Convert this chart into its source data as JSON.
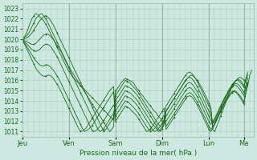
{
  "xlabel": "Pression niveau de la mer( hPa )",
  "bg_color": "#cce8e0",
  "grid_color": "#aaccbb",
  "line_color": "#1a6b1a",
  "ylim_min": 1010.5,
  "ylim_max": 1023.5,
  "yticks": [
    1011,
    1012,
    1013,
    1014,
    1015,
    1016,
    1017,
    1018,
    1019,
    1020,
    1021,
    1022,
    1023
  ],
  "day_labels": [
    "Jeu",
    "Ven",
    "Sam",
    "Dim",
    "Lun",
    "Ma"
  ],
  "day_positions": [
    0,
    24,
    48,
    72,
    96,
    114
  ],
  "xlim_max": 119,
  "series": [
    [
      1020.0,
      1020.2,
      1020.5,
      1021.0,
      1021.5,
      1022.0,
      1022.3,
      1022.5,
      1022.4,
      1022.2,
      1022.0,
      1021.8,
      1021.5,
      1021.2,
      1020.8,
      1020.4,
      1020.0,
      1019.6,
      1019.2,
      1018.8,
      1018.4,
      1018.0,
      1017.6,
      1017.2,
      1016.9,
      1016.6,
      1016.3,
      1016.1,
      1015.9,
      1015.7,
      1015.5,
      1015.3,
      1015.1,
      1014.9,
      1014.7,
      1014.5,
      1014.3,
      1014.1,
      1013.9,
      1013.7,
      1013.5,
      1013.3,
      1013.1,
      1012.9,
      1012.7,
      1012.5,
      1012.3,
      1012.1,
      1015.0,
      1015.2,
      1015.5,
      1015.8,
      1016.0,
      1016.2,
      1016.1,
      1016.0,
      1015.9,
      1015.8,
      1015.5,
      1015.2,
      1015.0,
      1014.7,
      1014.5,
      1014.2,
      1014.0,
      1013.7,
      1013.5,
      1013.2,
      1013.0,
      1012.8,
      1012.5,
      1012.3,
      1012.0,
      1011.8,
      1013.0,
      1013.3,
      1013.6,
      1013.9,
      1014.2,
      1014.5,
      1014.8,
      1015.1,
      1015.4,
      1015.7,
      1016.0,
      1016.2,
      1016.4,
      1016.5,
      1016.4,
      1016.2,
      1016.0,
      1015.7,
      1015.4,
      1015.0,
      1014.6,
      1014.2,
      1013.8,
      1013.4,
      1011.2,
      1011.0,
      1011.5,
      1012.0,
      1012.5,
      1013.0,
      1013.5,
      1014.0,
      1014.5,
      1015.0,
      1015.5,
      1015.8,
      1016.0,
      1016.2,
      1016.3,
      1016.2,
      1016.0,
      1015.8,
      1015.5,
      1016.5,
      1017.0
    ],
    [
      1020.0,
      1020.1,
      1020.3,
      1020.5,
      1020.8,
      1021.2,
      1021.6,
      1022.0,
      1022.2,
      1022.4,
      1022.5,
      1022.3,
      1022.0,
      1021.7,
      1021.3,
      1020.9,
      1020.5,
      1020.1,
      1019.7,
      1019.3,
      1018.9,
      1018.5,
      1018.1,
      1017.7,
      1017.3,
      1017.0,
      1016.7,
      1016.4,
      1016.1,
      1015.8,
      1015.5,
      1015.2,
      1014.9,
      1014.6,
      1014.3,
      1014.0,
      1013.7,
      1013.4,
      1013.1,
      1012.8,
      1012.5,
      1012.2,
      1011.9,
      1011.6,
      1011.3,
      1011.0,
      1011.2,
      1011.5,
      1014.5,
      1014.8,
      1015.1,
      1015.4,
      1015.7,
      1016.0,
      1015.9,
      1015.8,
      1015.6,
      1015.4,
      1015.2,
      1015.0,
      1014.7,
      1014.4,
      1014.1,
      1013.8,
      1013.5,
      1013.2,
      1012.9,
      1012.6,
      1012.3,
      1012.0,
      1011.7,
      1011.5,
      1011.8,
      1012.2,
      1013.5,
      1013.8,
      1014.1,
      1014.4,
      1014.7,
      1015.0,
      1015.3,
      1015.6,
      1015.9,
      1016.2,
      1016.5,
      1016.7,
      1016.8,
      1016.7,
      1016.5,
      1016.2,
      1015.9,
      1015.5,
      1015.1,
      1014.7,
      1014.3,
      1013.9,
      1013.5,
      1013.1,
      1011.5,
      1011.8,
      1012.2,
      1012.6,
      1013.0,
      1013.4,
      1013.8,
      1014.2,
      1014.6,
      1015.0,
      1015.4,
      1015.7,
      1016.0,
      1016.1,
      1016.0,
      1015.8,
      1015.5,
      1016.0,
      1016.5
    ],
    [
      1020.0,
      1020.0,
      1020.1,
      1020.2,
      1020.4,
      1020.6,
      1020.9,
      1021.2,
      1021.5,
      1021.8,
      1022.0,
      1022.2,
      1022.3,
      1022.2,
      1022.0,
      1021.7,
      1021.4,
      1021.0,
      1020.6,
      1020.2,
      1019.8,
      1019.4,
      1019.0,
      1018.6,
      1018.2,
      1017.8,
      1017.4,
      1017.0,
      1016.6,
      1016.2,
      1015.8,
      1015.4,
      1015.0,
      1014.6,
      1014.2,
      1013.8,
      1013.4,
      1013.0,
      1012.6,
      1012.2,
      1011.8,
      1011.4,
      1011.0,
      1011.2,
      1011.5,
      1011.8,
      1012.1,
      1012.4,
      1014.0,
      1014.3,
      1014.6,
      1014.9,
      1015.2,
      1015.5,
      1015.4,
      1015.3,
      1015.2,
      1015.0,
      1014.8,
      1014.6,
      1014.3,
      1014.0,
      1013.7,
      1013.4,
      1013.1,
      1012.8,
      1012.5,
      1012.2,
      1011.9,
      1011.6,
      1011.3,
      1011.0,
      1011.3,
      1011.7,
      1013.0,
      1013.3,
      1013.6,
      1013.9,
      1014.2,
      1014.5,
      1014.8,
      1015.1,
      1015.4,
      1015.7,
      1016.0,
      1016.2,
      1016.3,
      1016.2,
      1016.0,
      1015.7,
      1015.4,
      1015.0,
      1014.6,
      1014.2,
      1013.8,
      1013.4,
      1013.0,
      1012.6,
      1011.8,
      1012.2,
      1012.6,
      1013.0,
      1013.4,
      1013.8,
      1014.2,
      1014.6,
      1015.0,
      1015.3,
      1015.6,
      1015.8,
      1016.0,
      1016.0,
      1015.8,
      1015.6,
      1015.3,
      1016.2,
      1016.8
    ],
    [
      1020.0,
      1019.9,
      1019.8,
      1019.7,
      1019.6,
      1019.5,
      1019.5,
      1019.6,
      1019.8,
      1020.0,
      1020.2,
      1020.4,
      1020.5,
      1020.5,
      1020.4,
      1020.2,
      1020.0,
      1019.7,
      1019.4,
      1019.1,
      1018.8,
      1018.4,
      1018.0,
      1017.6,
      1017.2,
      1016.8,
      1016.4,
      1016.0,
      1015.6,
      1015.2,
      1014.8,
      1014.4,
      1014.0,
      1013.6,
      1013.2,
      1012.8,
      1012.4,
      1012.0,
      1011.6,
      1011.2,
      1011.0,
      1011.1,
      1011.3,
      1011.6,
      1011.9,
      1012.2,
      1012.5,
      1012.8,
      1013.5,
      1013.8,
      1014.1,
      1014.4,
      1014.7,
      1015.0,
      1014.9,
      1014.8,
      1014.7,
      1014.5,
      1014.3,
      1014.1,
      1013.8,
      1013.5,
      1013.2,
      1012.9,
      1012.6,
      1012.3,
      1012.0,
      1011.7,
      1011.5,
      1011.3,
      1011.0,
      1011.2,
      1011.5,
      1011.8,
      1012.5,
      1012.8,
      1013.1,
      1013.4,
      1013.7,
      1014.0,
      1014.3,
      1014.6,
      1014.9,
      1015.2,
      1015.5,
      1015.7,
      1015.8,
      1015.7,
      1015.5,
      1015.2,
      1014.9,
      1014.5,
      1014.1,
      1013.7,
      1013.3,
      1012.9,
      1012.5,
      1012.1,
      1011.8,
      1012.0,
      1012.4,
      1012.8,
      1013.2,
      1013.6,
      1014.0,
      1014.4,
      1014.8,
      1015.1,
      1015.4,
      1015.6,
      1015.7,
      1015.6,
      1015.4,
      1015.1,
      1014.8,
      1015.5,
      1016.2
    ],
    [
      1020.0,
      1019.8,
      1019.6,
      1019.4,
      1019.2,
      1019.0,
      1018.9,
      1018.8,
      1018.9,
      1019.0,
      1019.2,
      1019.4,
      1019.5,
      1019.5,
      1019.4,
      1019.2,
      1018.9,
      1018.6,
      1018.3,
      1017.9,
      1017.5,
      1017.1,
      1016.7,
      1016.3,
      1015.9,
      1015.5,
      1015.1,
      1014.7,
      1014.3,
      1013.9,
      1013.5,
      1013.1,
      1012.7,
      1012.3,
      1011.9,
      1011.5,
      1011.1,
      1011.0,
      1011.1,
      1011.3,
      1011.5,
      1011.8,
      1012.1,
      1012.4,
      1012.7,
      1013.0,
      1013.3,
      1013.6,
      1013.0,
      1013.3,
      1013.6,
      1013.9,
      1014.2,
      1014.5,
      1014.4,
      1014.3,
      1014.2,
      1014.0,
      1013.8,
      1013.6,
      1013.3,
      1013.0,
      1012.7,
      1012.4,
      1012.1,
      1011.8,
      1011.5,
      1011.2,
      1011.0,
      1011.1,
      1011.3,
      1011.5,
      1011.8,
      1012.1,
      1012.0,
      1012.3,
      1012.6,
      1012.9,
      1013.2,
      1013.5,
      1013.8,
      1014.1,
      1014.4,
      1014.7,
      1015.0,
      1015.2,
      1015.3,
      1015.2,
      1015.0,
      1014.7,
      1014.4,
      1014.0,
      1013.6,
      1013.2,
      1012.8,
      1012.4,
      1012.0,
      1011.7,
      1012.0,
      1012.3,
      1012.7,
      1013.1,
      1013.5,
      1013.9,
      1014.3,
      1014.6,
      1014.9,
      1015.2,
      1015.4,
      1015.5,
      1015.5,
      1015.3,
      1015.1,
      1014.8,
      1014.5,
      1015.2,
      1015.8
    ],
    [
      1020.0,
      1019.7,
      1019.4,
      1019.1,
      1018.8,
      1018.5,
      1018.2,
      1017.9,
      1017.7,
      1017.5,
      1017.4,
      1017.4,
      1017.5,
      1017.5,
      1017.4,
      1017.2,
      1017.0,
      1016.7,
      1016.4,
      1016.1,
      1015.7,
      1015.3,
      1014.9,
      1014.5,
      1014.1,
      1013.7,
      1013.3,
      1012.9,
      1012.5,
      1012.1,
      1011.7,
      1011.3,
      1011.0,
      1011.1,
      1011.2,
      1011.4,
      1011.6,
      1011.9,
      1012.2,
      1012.5,
      1012.8,
      1013.1,
      1013.4,
      1013.7,
      1014.0,
      1014.3,
      1014.6,
      1014.9,
      1012.5,
      1012.8,
      1013.1,
      1013.4,
      1013.7,
      1014.0,
      1013.9,
      1013.8,
      1013.6,
      1013.4,
      1013.2,
      1013.0,
      1012.7,
      1012.4,
      1012.1,
      1011.8,
      1011.5,
      1011.2,
      1011.0,
      1011.1,
      1011.3,
      1011.5,
      1011.8,
      1012.0,
      1012.3,
      1012.6,
      1011.5,
      1011.8,
      1012.1,
      1012.4,
      1012.7,
      1013.0,
      1013.3,
      1013.6,
      1013.9,
      1014.2,
      1014.5,
      1014.7,
      1014.8,
      1014.7,
      1014.5,
      1014.2,
      1013.9,
      1013.5,
      1013.1,
      1012.7,
      1012.3,
      1011.9,
      1011.5,
      1011.2,
      1011.5,
      1011.8,
      1012.2,
      1012.6,
      1013.0,
      1013.4,
      1013.8,
      1014.1,
      1014.4,
      1014.7,
      1014.9,
      1015.0,
      1014.9,
      1014.7,
      1014.5,
      1014.2,
      1013.9,
      1014.8,
      1015.5
    ],
    [
      1020.0,
      1019.6,
      1019.2,
      1018.8,
      1018.4,
      1018.0,
      1017.6,
      1017.2,
      1016.9,
      1016.7,
      1016.5,
      1016.4,
      1016.4,
      1016.5,
      1016.5,
      1016.4,
      1016.2,
      1015.9,
      1015.6,
      1015.3,
      1014.9,
      1014.5,
      1014.1,
      1013.7,
      1013.3,
      1012.9,
      1012.5,
      1012.1,
      1011.7,
      1011.3,
      1011.0,
      1011.1,
      1011.2,
      1011.4,
      1011.7,
      1012.0,
      1012.3,
      1012.6,
      1012.9,
      1013.2,
      1013.5,
      1013.8,
      1014.1,
      1014.4,
      1014.7,
      1015.0,
      1015.2,
      1015.4,
      1012.0,
      1012.3,
      1012.6,
      1012.9,
      1013.2,
      1013.5,
      1013.4,
      1013.3,
      1013.1,
      1012.9,
      1012.7,
      1012.5,
      1012.2,
      1011.9,
      1011.6,
      1011.3,
      1011.0,
      1011.1,
      1011.3,
      1011.5,
      1011.8,
      1012.1,
      1012.4,
      1012.7,
      1013.0,
      1013.3,
      1011.2,
      1011.5,
      1011.8,
      1012.1,
      1012.4,
      1012.7,
      1013.0,
      1013.3,
      1013.6,
      1013.9,
      1014.2,
      1014.4,
      1014.5,
      1014.4,
      1014.2,
      1013.9,
      1013.6,
      1013.2,
      1012.8,
      1012.4,
      1012.0,
      1011.6,
      1011.2,
      1011.0,
      1011.3,
      1011.7,
      1012.1,
      1012.5,
      1012.9,
      1013.3,
      1013.7,
      1014.0,
      1014.3,
      1014.6,
      1014.8,
      1014.9,
      1014.8,
      1014.6,
      1014.3,
      1014.0,
      1013.7,
      1014.8,
      1015.8
    ]
  ]
}
